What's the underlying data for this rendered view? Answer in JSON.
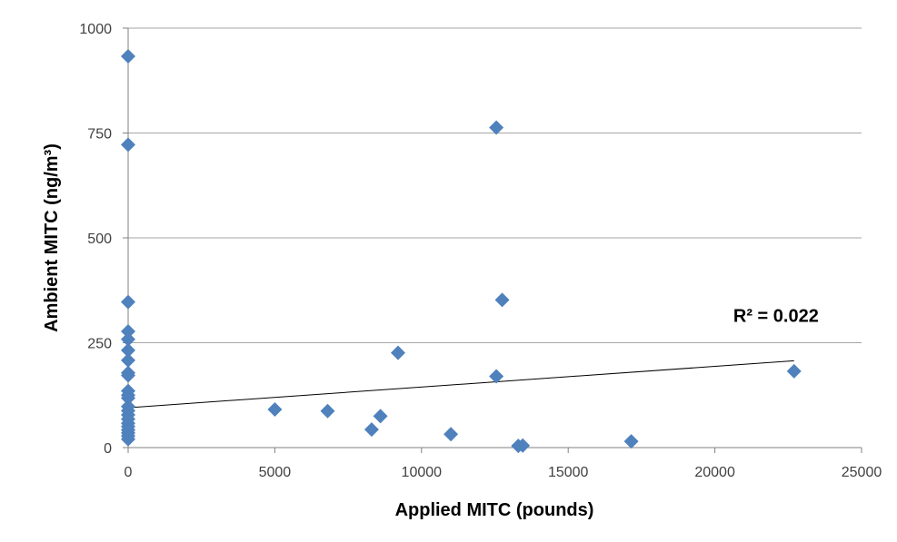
{
  "chart_data": {
    "type": "scatter",
    "xlabel": "Applied MITC (pounds)",
    "ylabel": "Ambient MITC (ng/m³)",
    "xlim": [
      0,
      25000
    ],
    "ylim": [
      0,
      1000
    ],
    "x_ticks": [
      0,
      5000,
      10000,
      15000,
      20000,
      25000
    ],
    "y_ticks": [
      0,
      250,
      500,
      750,
      1000
    ],
    "x_tick_labels": [
      "0",
      "5000",
      "10000",
      "15000",
      "20000",
      "25000"
    ],
    "y_tick_labels": [
      "0",
      "250",
      "500",
      "750",
      "1000"
    ],
    "grid": {
      "horizontal": true,
      "vertical": false
    },
    "marker": "diamond",
    "colors": {
      "marker": "#4F81BD",
      "trendline": "#000000",
      "grid": "#A6A6A6",
      "axis": "#808080"
    },
    "series": [
      {
        "points": [
          [
            0,
            933
          ],
          [
            0,
            722
          ],
          [
            0,
            347
          ],
          [
            0,
            277
          ],
          [
            0,
            258
          ],
          [
            0,
            232
          ],
          [
            0,
            208
          ],
          [
            0,
            178
          ],
          [
            0,
            172
          ],
          [
            0,
            135
          ],
          [
            0,
            125
          ],
          [
            0,
            118
          ],
          [
            0,
            98
          ],
          [
            0,
            88
          ],
          [
            0,
            78
          ],
          [
            0,
            68
          ],
          [
            0,
            58
          ],
          [
            0,
            50
          ],
          [
            0,
            42
          ],
          [
            0,
            35
          ],
          [
            0,
            28
          ],
          [
            0,
            20
          ],
          [
            5000,
            91
          ],
          [
            6800,
            87
          ],
          [
            8300,
            43
          ],
          [
            8600,
            75
          ],
          [
            9200,
            226
          ],
          [
            11000,
            32
          ],
          [
            12550,
            763
          ],
          [
            12550,
            170
          ],
          [
            12750,
            352
          ],
          [
            13300,
            4
          ],
          [
            13450,
            5
          ],
          [
            17150,
            15
          ],
          [
            22700,
            182
          ]
        ]
      }
    ],
    "trendline": {
      "type": "linear",
      "x": [
        0,
        22700
      ],
      "y": [
        95,
        207
      ]
    },
    "annotations": [
      {
        "text": "R² = 0.022",
        "x": 21000,
        "y": 315
      }
    ]
  }
}
